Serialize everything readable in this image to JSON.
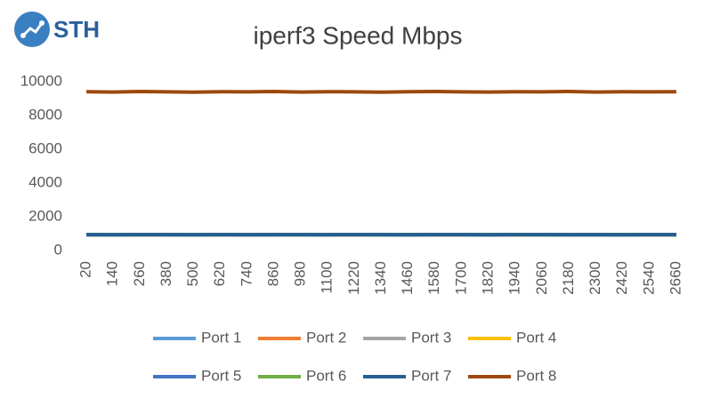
{
  "logo": "STH",
  "chart_data": {
    "type": "line",
    "title": "iperf3 Speed Mbps",
    "categories": [
      20,
      140,
      260,
      380,
      500,
      620,
      740,
      860,
      980,
      1100,
      1220,
      1340,
      1460,
      1580,
      1700,
      1820,
      1940,
      2060,
      2180,
      2300,
      2420,
      2540,
      2660
    ],
    "ylim": [
      0,
      10000
    ],
    "yticks": [
      0,
      2000,
      4000,
      6000,
      8000,
      10000
    ],
    "grid": false,
    "legend": "bottom",
    "series": [
      {
        "name": "Port 1",
        "color": "#5b9bd5",
        "values": [
          941,
          938,
          943,
          940,
          936,
          942,
          939,
          941,
          944,
          937,
          940,
          942,
          938,
          941,
          939,
          943,
          940,
          936,
          941,
          942,
          939,
          940,
          941
        ]
      },
      {
        "name": "Port 2",
        "color": "#ed7d31",
        "values": [
          939,
          942,
          940,
          937,
          941,
          943,
          938,
          940,
          941,
          939,
          942,
          937,
          940,
          943,
          941,
          938,
          939,
          942,
          940,
          937,
          941,
          943,
          939
        ]
      },
      {
        "name": "Port 3",
        "color": "#a5a5a5",
        "values": [
          940,
          937,
          941,
          943,
          939,
          938,
          942,
          940,
          937,
          941,
          939,
          943,
          940,
          938,
          942,
          940,
          941,
          939,
          937,
          943,
          940,
          938,
          942
        ]
      },
      {
        "name": "Port 4",
        "color": "#ffc000",
        "values": [
          942,
          940,
          938,
          941,
          943,
          937,
          940,
          939,
          942,
          940,
          938,
          941,
          943,
          937,
          940,
          942,
          938,
          941,
          939,
          940,
          942,
          937,
          940
        ]
      },
      {
        "name": "Port 5",
        "color": "#4472c4",
        "values": [
          938,
          941,
          942,
          939,
          940,
          941,
          943,
          937,
          940,
          942,
          941,
          939,
          937,
          942,
          940,
          939,
          943,
          940,
          942,
          938,
          937,
          941,
          940
        ]
      },
      {
        "name": "Port 6",
        "color": "#70ad47",
        "values": [
          941,
          943,
          939,
          940,
          942,
          938,
          941,
          942,
          939,
          943,
          940,
          938,
          942,
          940,
          937,
          941,
          942,
          939,
          940,
          941,
          943,
          940,
          938
        ]
      },
      {
        "name": "Port 7",
        "color": "#255e91",
        "values": [
          940,
          939,
          941,
          942,
          938,
          940,
          937,
          943,
          941,
          938,
          942,
          940,
          939,
          941,
          943,
          937,
          940,
          942,
          938,
          941,
          939,
          942,
          941
        ]
      },
      {
        "name": "Port 8",
        "color": "#9e480e",
        "values": [
          9410,
          9390,
          9420,
          9400,
          9380,
          9410,
          9400,
          9420,
          9390,
          9410,
          9400,
          9380,
          9410,
          9420,
          9400,
          9390,
          9410,
          9400,
          9420,
          9390,
          9410,
          9400,
          9410
        ]
      }
    ]
  }
}
